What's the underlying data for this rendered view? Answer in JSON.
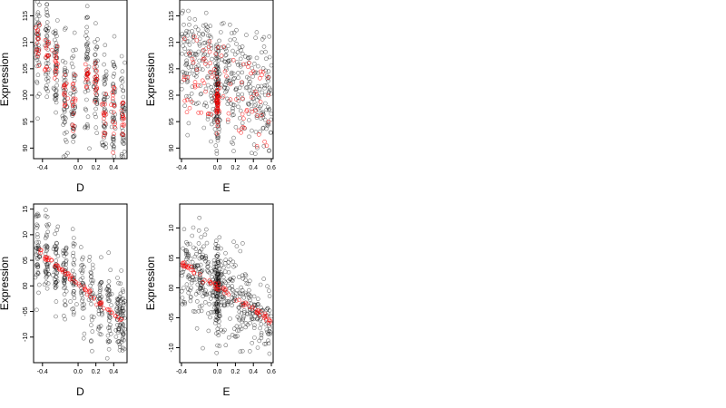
{
  "chart_data": [
    {
      "type": "scatter",
      "xlabel": "D",
      "ylabel": "Expression",
      "xticks": [
        "-0.4",
        "0.0",
        "0.2",
        "0.4"
      ],
      "xtick_values": [
        -0.4,
        0.0,
        0.2,
        0.4
      ],
      "yticks": [
        "90",
        "95",
        "100",
        "105",
        "110",
        "115"
      ],
      "ytick_values": [
        90,
        95,
        100,
        105,
        110,
        115
      ],
      "xlim": [
        -0.5,
        0.55
      ],
      "ylim": [
        88,
        118
      ],
      "series": [
        {
          "color": "#000000",
          "marker": "open-circle",
          "x_levels": [
            -0.45,
            -0.35,
            -0.25,
            -0.15,
            -0.05,
            0.1,
            0.2,
            0.3,
            0.4,
            0.5
          ],
          "y_range": [
            90,
            118
          ],
          "n": 500
        },
        {
          "color": "#ff0000",
          "marker": "open-circle",
          "x_levels": [
            -0.45,
            -0.35,
            -0.25,
            -0.15,
            -0.05,
            0.1,
            0.2,
            0.3,
            0.4,
            0.5
          ],
          "y_centers": [
            110,
            108,
            106,
            100,
            99,
            104,
            102,
            96,
            98,
            95
          ]
        }
      ]
    },
    {
      "type": "scatter",
      "xlabel": "E",
      "ylabel": "Expression",
      "xticks": [
        "-0.4",
        "0.0",
        "0.2",
        "0.4",
        "0.6"
      ],
      "xtick_values": [
        -0.4,
        0.0,
        0.2,
        0.4,
        0.6
      ],
      "yticks": [
        "90",
        "95",
        "100",
        "105",
        "110",
        "115"
      ],
      "ytick_values": [
        90,
        95,
        100,
        105,
        110,
        115
      ],
      "xlim": [
        -0.42,
        0.62
      ],
      "ylim": [
        88,
        118
      ],
      "series": [
        {
          "color": "#000000",
          "marker": "open-circle",
          "y_range": [
            90,
            118
          ],
          "n": 500
        },
        {
          "color": "#ff0000",
          "marker": "open-circle",
          "y_range": [
            92,
            112
          ]
        }
      ]
    },
    {
      "type": "scatter",
      "xlabel": "D",
      "ylabel": "Expression",
      "xticks": [
        "-0.4",
        "0.0",
        "0.2",
        "0.4"
      ],
      "xtick_values": [
        -0.4,
        0.0,
        0.2,
        0.4
      ],
      "yticks": [
        "-10",
        "-05",
        "00",
        "05",
        "10",
        "15"
      ],
      "ytick_values": [
        -1.0,
        -0.5,
        0.0,
        0.5,
        1.0,
        1.5
      ],
      "xlim": [
        -0.5,
        0.55
      ],
      "ylim": [
        -1.5,
        1.6
      ],
      "series": [
        {
          "color": "#000000",
          "marker": "open-circle",
          "y_range": [
            -1.4,
            1.5
          ],
          "n": 500
        },
        {
          "color": "#ff0000",
          "marker": "open-circle",
          "fit": {
            "x": [
              -0.45,
              0.5
            ],
            "y": [
              0.7,
              -0.7
            ]
          }
        }
      ]
    },
    {
      "type": "scatter",
      "xlabel": "E",
      "ylabel": "Expression",
      "xticks": [
        "-0.4",
        "0.0",
        "0.2",
        "0.4",
        "0.6"
      ],
      "xtick_values": [
        -0.4,
        0.0,
        0.2,
        0.4,
        0.6
      ],
      "yticks": [
        "-10",
        "-05",
        "00",
        "05",
        "10"
      ],
      "ytick_values": [
        -1.0,
        -0.5,
        0.0,
        0.5,
        1.0
      ],
      "xlim": [
        -0.42,
        0.62
      ],
      "ylim": [
        -1.25,
        1.4
      ],
      "series": [
        {
          "color": "#000000",
          "marker": "open-circle",
          "y_range": [
            -1.2,
            1.3
          ],
          "n": 500
        },
        {
          "color": "#ff0000",
          "marker": "open-circle",
          "fit": {
            "x": [
              -0.4,
              0.6
            ],
            "y": [
              0.4,
              -0.55
            ]
          }
        }
      ]
    }
  ]
}
